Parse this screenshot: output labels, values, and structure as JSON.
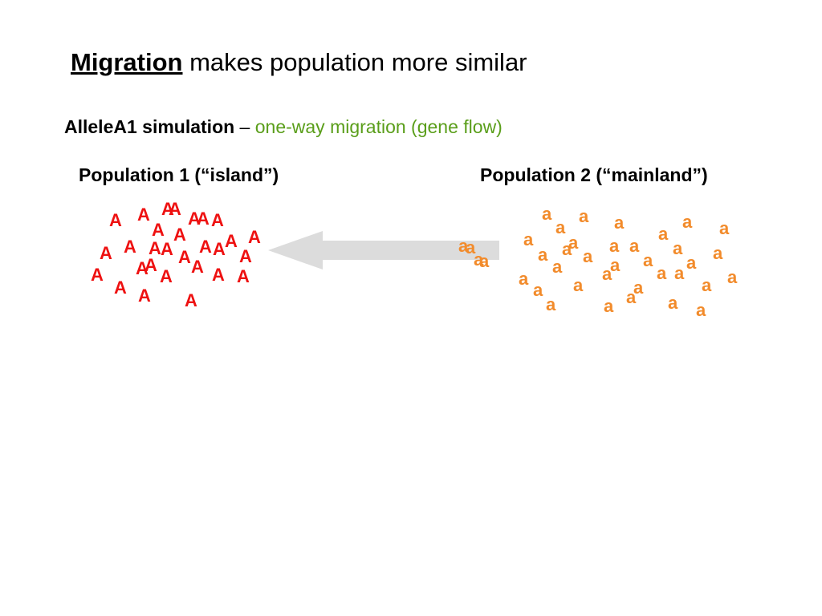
{
  "title": {
    "keyword": "Migration",
    "rest": " makes population more similar"
  },
  "subtitle": {
    "bold": "AlleleA1 simulation",
    "dash": " – ",
    "green": "one-way migration (gene flow)"
  },
  "populations": {
    "pop1_label": "Population 1 (“island”)",
    "pop2_label": "Population 2 (“mainland”)"
  },
  "alleles": {
    "dominant": "A",
    "recessive": "a",
    "dominant_color": "#ee1111",
    "recessive_color": "#f28b2b",
    "dominant_count": 29,
    "recessive_count": 38
  },
  "arrow": {
    "direction": "right-to-left",
    "color": "#dcdcdc"
  }
}
